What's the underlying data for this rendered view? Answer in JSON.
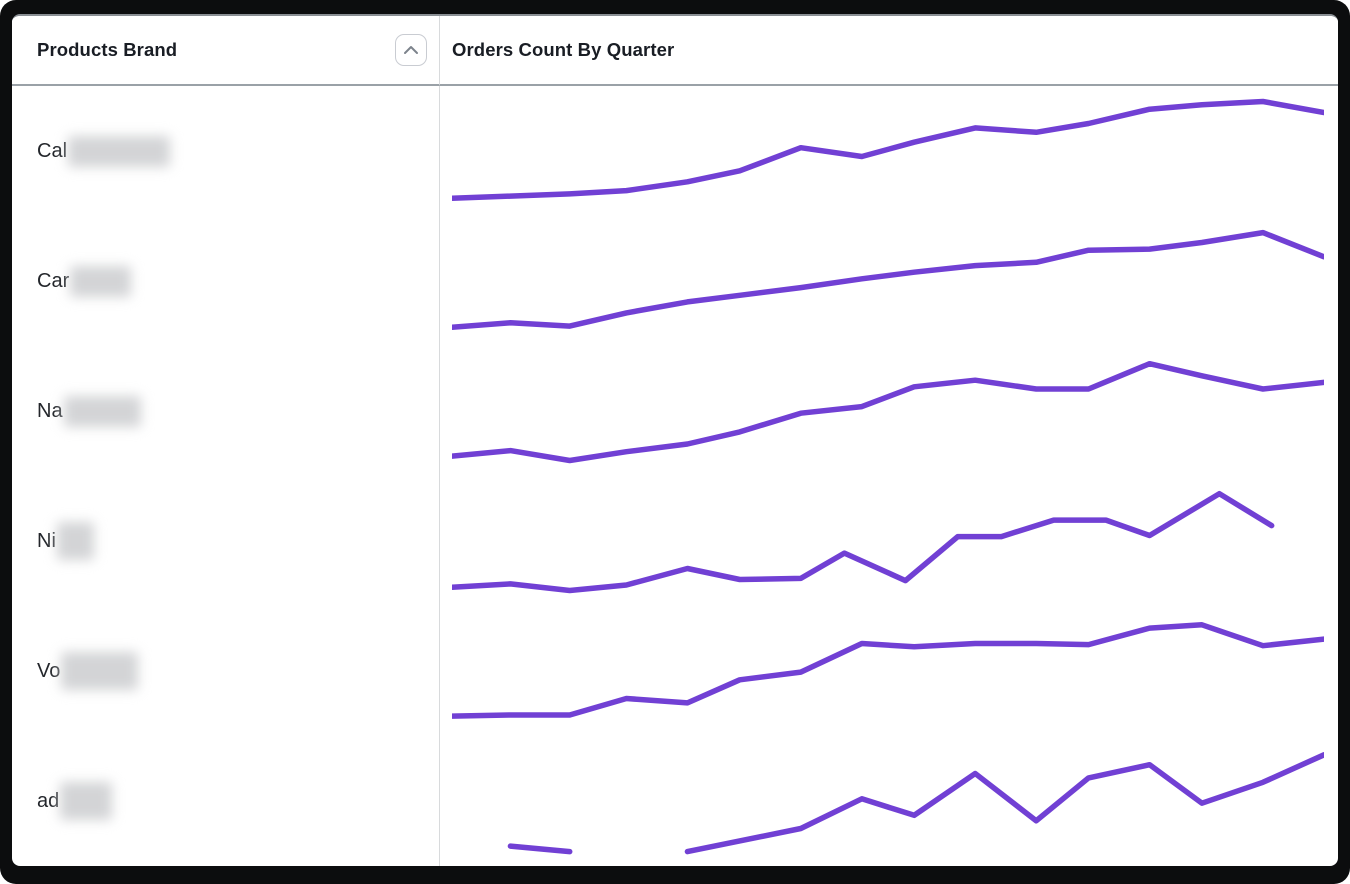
{
  "header": {
    "left_title": "Products Brand",
    "right_title": "Orders Count By Quarter",
    "sort_icon": "chevron-up-icon",
    "sort_state": "ascending"
  },
  "colors": {
    "line": "#7140d4",
    "row_alt_bg": "#f4f4f6",
    "header_border": "#9aa1a7",
    "column_divider": "#d8dadc",
    "header_text": "#191d24",
    "label_text": "#23262b"
  },
  "rows": [
    {
      "brand_prefix": "Cal",
      "redacted": true
    },
    {
      "brand_prefix": "Car",
      "redacted": true
    },
    {
      "brand_prefix": "Na",
      "redacted": true
    },
    {
      "brand_prefix": "Ni",
      "redacted": true
    },
    {
      "brand_prefix": "Vo",
      "redacted": true
    },
    {
      "brand_prefix": "ad",
      "redacted": true
    }
  ],
  "chart_data": [
    {
      "type": "line",
      "row_label": "Cal (redacted)",
      "title": "Orders Count By Quarter",
      "x_note": "quarters, evenly spaced, x in % of plot width",
      "y_note": "orders count normalized 0-100 (no axis labels shown)",
      "grid": false,
      "legend": false,
      "segments": [
        [
          [
            0,
            7
          ],
          [
            6.7,
            9
          ],
          [
            13.5,
            11
          ],
          [
            20,
            14
          ],
          [
            27,
            22
          ],
          [
            33,
            32
          ],
          [
            40,
            53
          ],
          [
            47,
            45
          ],
          [
            53,
            58
          ],
          [
            60,
            71
          ],
          [
            67,
            67
          ],
          [
            73,
            75
          ],
          [
            80,
            88
          ],
          [
            86,
            92
          ],
          [
            93,
            95
          ],
          [
            100,
            85
          ]
        ]
      ]
    },
    {
      "type": "line",
      "row_label": "Car (redacted)",
      "title": "Orders Count By Quarter",
      "x_note": "quarters, evenly spaced, x in % of plot width",
      "y_note": "orders count normalized 0-100",
      "grid": false,
      "legend": false,
      "segments": [
        [
          [
            0,
            8
          ],
          [
            6.7,
            12
          ],
          [
            13.5,
            9
          ],
          [
            20,
            21
          ],
          [
            27,
            31
          ],
          [
            33,
            37
          ],
          [
            40,
            44
          ],
          [
            47,
            52
          ],
          [
            53,
            58
          ],
          [
            60,
            64
          ],
          [
            67,
            67
          ],
          [
            73,
            78
          ],
          [
            80,
            79
          ],
          [
            86,
            85
          ],
          [
            93,
            94
          ],
          [
            100,
            72
          ]
        ]
      ]
    },
    {
      "type": "line",
      "row_label": "Na (redacted)",
      "title": "Orders Count By Quarter",
      "x_note": "quarters, evenly spaced, x in % of plot width",
      "y_note": "orders count normalized 0-100",
      "grid": false,
      "legend": false,
      "segments": [
        [
          [
            0,
            9
          ],
          [
            6.7,
            14
          ],
          [
            13.5,
            5
          ],
          [
            20,
            13
          ],
          [
            27,
            20
          ],
          [
            33,
            31
          ],
          [
            40,
            48
          ],
          [
            47,
            54
          ],
          [
            53,
            72
          ],
          [
            60,
            78
          ],
          [
            67,
            70
          ],
          [
            73,
            70
          ],
          [
            80,
            93
          ],
          [
            86,
            82
          ],
          [
            93,
            70
          ],
          [
            100,
            76
          ]
        ]
      ]
    },
    {
      "type": "line",
      "row_label": "Ni (redacted)",
      "title": "Orders Count By Quarter",
      "x_note": "quarters, evenly spaced, x in % of plot width; series ends before right edge",
      "y_note": "orders count normalized 0-100",
      "grid": false,
      "legend": false,
      "segments": [
        [
          [
            0,
            8
          ],
          [
            6.7,
            11
          ],
          [
            13.5,
            5
          ],
          [
            20,
            10
          ],
          [
            27,
            25
          ],
          [
            33,
            15
          ],
          [
            40,
            16
          ],
          [
            45,
            39
          ],
          [
            52,
            14
          ],
          [
            58,
            54
          ],
          [
            63,
            54
          ],
          [
            69,
            69
          ],
          [
            75,
            69
          ],
          [
            80,
            55
          ],
          [
            88,
            93
          ],
          [
            94,
            64
          ]
        ]
      ]
    },
    {
      "type": "line",
      "row_label": "Vo (redacted)",
      "title": "Orders Count By Quarter",
      "x_note": "quarters, evenly spaced, x in % of plot width",
      "y_note": "orders count normalized 0-100",
      "grid": false,
      "legend": false,
      "segments": [
        [
          [
            0,
            9
          ],
          [
            6.7,
            10
          ],
          [
            13.5,
            10
          ],
          [
            20,
            25
          ],
          [
            27,
            21
          ],
          [
            33,
            42
          ],
          [
            40,
            49
          ],
          [
            47,
            75
          ],
          [
            53,
            72
          ],
          [
            60,
            75
          ],
          [
            67,
            75
          ],
          [
            73,
            74
          ],
          [
            80,
            89
          ],
          [
            86,
            92
          ],
          [
            93,
            73
          ],
          [
            100,
            79
          ]
        ]
      ]
    },
    {
      "type": "line",
      "row_label": "ad (redacted)",
      "title": "Orders Count By Quarter",
      "x_note": "two disconnected segments (missing quarters); x in % of plot width",
      "y_note": "orders count normalized 0-100",
      "grid": false,
      "legend": false,
      "segments": [
        [
          [
            6.7,
            9
          ],
          [
            13.5,
            4
          ]
        ],
        [
          [
            27,
            4
          ],
          [
            40,
            25
          ],
          [
            47,
            52
          ],
          [
            53,
            37
          ],
          [
            60,
            75
          ],
          [
            67,
            32
          ],
          [
            73,
            71
          ],
          [
            80,
            83
          ],
          [
            86,
            48
          ],
          [
            93,
            67
          ],
          [
            100,
            92
          ]
        ]
      ]
    }
  ]
}
